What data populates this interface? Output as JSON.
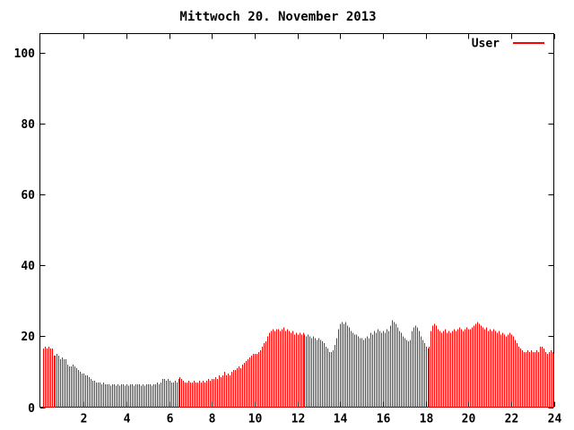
{
  "title": "Mittwoch 20. November 2013",
  "legend": {
    "label": "User",
    "color": "#ff0000",
    "position": "top-right"
  },
  "colors": {
    "background": "#ffffff",
    "axis": "#000000",
    "text": "#000000",
    "series": "#ff0000"
  },
  "chart_data": {
    "type": "bar",
    "style": "impulses",
    "title": "Mittwoch 20. November 2013",
    "xlabel": "",
    "ylabel": "",
    "x_unit": "hour-of-day",
    "xlim": [
      0,
      24
    ],
    "ylim": [
      0,
      105
    ],
    "x_ticks": [
      2,
      4,
      6,
      8,
      10,
      12,
      14,
      16,
      18,
      20,
      22,
      24
    ],
    "y_ticks": [
      0,
      20,
      40,
      60,
      80,
      100
    ],
    "grid": false,
    "legend_position": "top-right",
    "series": [
      {
        "name": "User",
        "color": "#ff0000",
        "x_start_hour": 0.0833333,
        "x_step_hours": 0.0833333,
        "values": [
          16.5,
          17,
          16.5,
          17,
          16.5,
          16.5,
          14.5,
          14.5,
          15,
          14.5,
          13.5,
          14,
          13.5,
          13.5,
          12,
          11.5,
          11.5,
          12,
          11.5,
          11,
          10.5,
          10,
          9.5,
          9.5,
          9,
          9,
          8.5,
          8,
          7.5,
          7.5,
          7,
          7,
          7,
          6.5,
          7,
          6.5,
          6.5,
          6.5,
          6,
          6.5,
          6.5,
          6,
          6.5,
          6,
          6.5,
          6.5,
          6,
          6.5,
          6,
          6.5,
          6.5,
          6,
          6.5,
          6.5,
          6.5,
          6,
          6.5,
          6,
          6.5,
          6.5,
          6.5,
          6,
          6.5,
          6.5,
          7,
          6.5,
          7,
          8,
          8,
          7.5,
          8,
          7.5,
          7,
          7,
          7.5,
          7,
          8,
          8.5,
          8,
          7.5,
          7,
          7,
          7.5,
          7,
          7,
          7.5,
          7,
          7,
          7.5,
          7,
          7.5,
          7,
          7.5,
          8,
          7.5,
          8,
          8,
          8.5,
          8,
          9,
          8.5,
          9,
          10,
          9,
          9.5,
          9,
          10,
          10.5,
          10.5,
          11,
          11.5,
          11,
          12,
          12.5,
          13,
          13.5,
          14,
          14.5,
          15,
          15,
          15,
          15.5,
          16,
          17,
          18,
          18.5,
          20,
          21,
          21.5,
          22,
          21.5,
          22,
          22,
          21.5,
          22,
          22.5,
          21.5,
          22,
          21.5,
          21,
          21.5,
          20.5,
          21,
          20.5,
          21,
          20.5,
          21,
          20.5,
          20,
          20.5,
          20,
          19.5,
          20,
          19.5,
          19,
          19.5,
          19,
          18.5,
          18,
          17,
          16.5,
          15.5,
          15.5,
          16,
          17.5,
          19.5,
          22,
          23.5,
          24,
          23.5,
          24,
          23,
          22.5,
          21.5,
          21,
          20.5,
          20.5,
          20,
          19.5,
          19.5,
          19,
          19.5,
          20,
          19.5,
          21,
          20.5,
          21.5,
          21,
          22,
          21.5,
          21,
          21.5,
          21,
          22,
          21.5,
          23,
          24.5,
          24,
          23.5,
          22.5,
          21.5,
          21,
          20,
          19.5,
          19,
          18.5,
          19,
          21.5,
          22.5,
          23,
          22.5,
          21.5,
          20,
          19,
          18,
          17,
          16.5,
          17,
          21.5,
          23,
          23.5,
          23,
          22,
          21.5,
          21,
          21.5,
          22,
          21,
          21.5,
          21,
          21.5,
          22,
          21.5,
          22,
          22.5,
          22,
          21.5,
          22,
          22.5,
          22,
          22,
          22.5,
          23,
          23.5,
          24,
          23.5,
          23,
          22.5,
          22,
          22.5,
          21.5,
          22,
          21.5,
          22,
          21.5,
          21,
          21.5,
          20.5,
          21,
          20.5,
          20,
          20.5,
          21,
          20.5,
          20,
          19,
          18,
          17,
          16.5,
          16,
          15.5,
          15.5,
          16,
          15.5,
          16,
          15.5,
          15.5,
          16,
          15.5,
          17,
          17,
          16.5,
          15.5,
          15,
          15.5,
          16,
          15.5,
          15
        ]
      }
    ]
  }
}
